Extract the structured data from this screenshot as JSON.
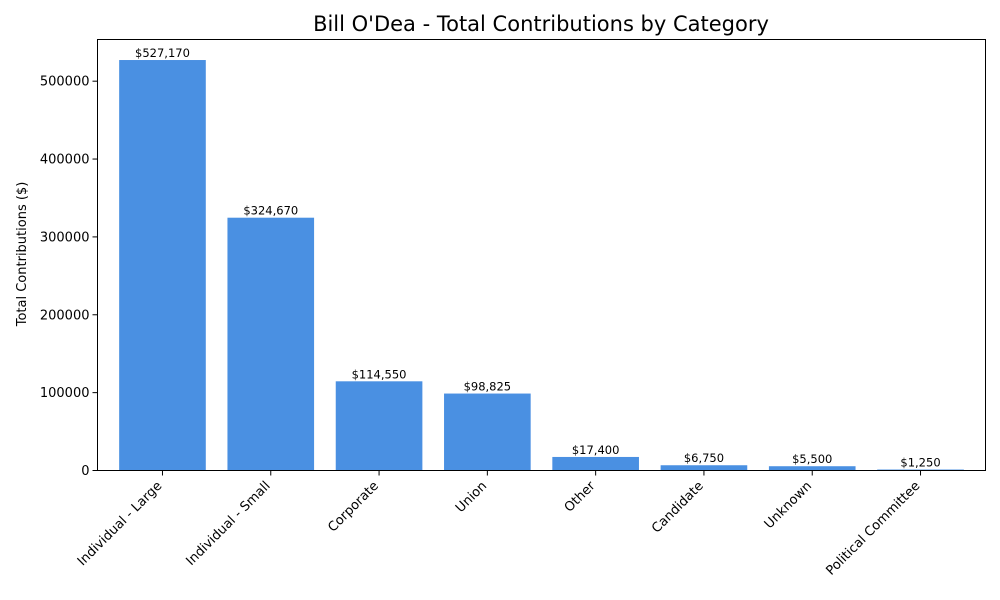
{
  "chart_data": {
    "type": "bar",
    "title": "Bill O'Dea - Total Contributions by Category",
    "xlabel": "",
    "ylabel": "Total Contributions ($)",
    "categories": [
      "Individual - Large",
      "Individual - Small",
      "Corporate",
      "Union",
      "Other",
      "Candidate",
      "Unknown",
      "Political Committee"
    ],
    "values": [
      527170,
      324670,
      114550,
      98825,
      17400,
      6750,
      5500,
      1250
    ],
    "data_labels": [
      "$527,170",
      "$324,670",
      "$114,550",
      "$98,825",
      "$17,400",
      "$6,750",
      "$5,500",
      "$1,250"
    ],
    "ylim": [
      0,
      553528
    ],
    "yticks": [
      0,
      100000,
      200000,
      300000,
      400000,
      500000
    ],
    "ytick_labels": [
      "0",
      "100000",
      "200000",
      "300000",
      "400000",
      "500000"
    ],
    "bar_color": "#4a90e2",
    "grid": false,
    "legend": "none"
  }
}
